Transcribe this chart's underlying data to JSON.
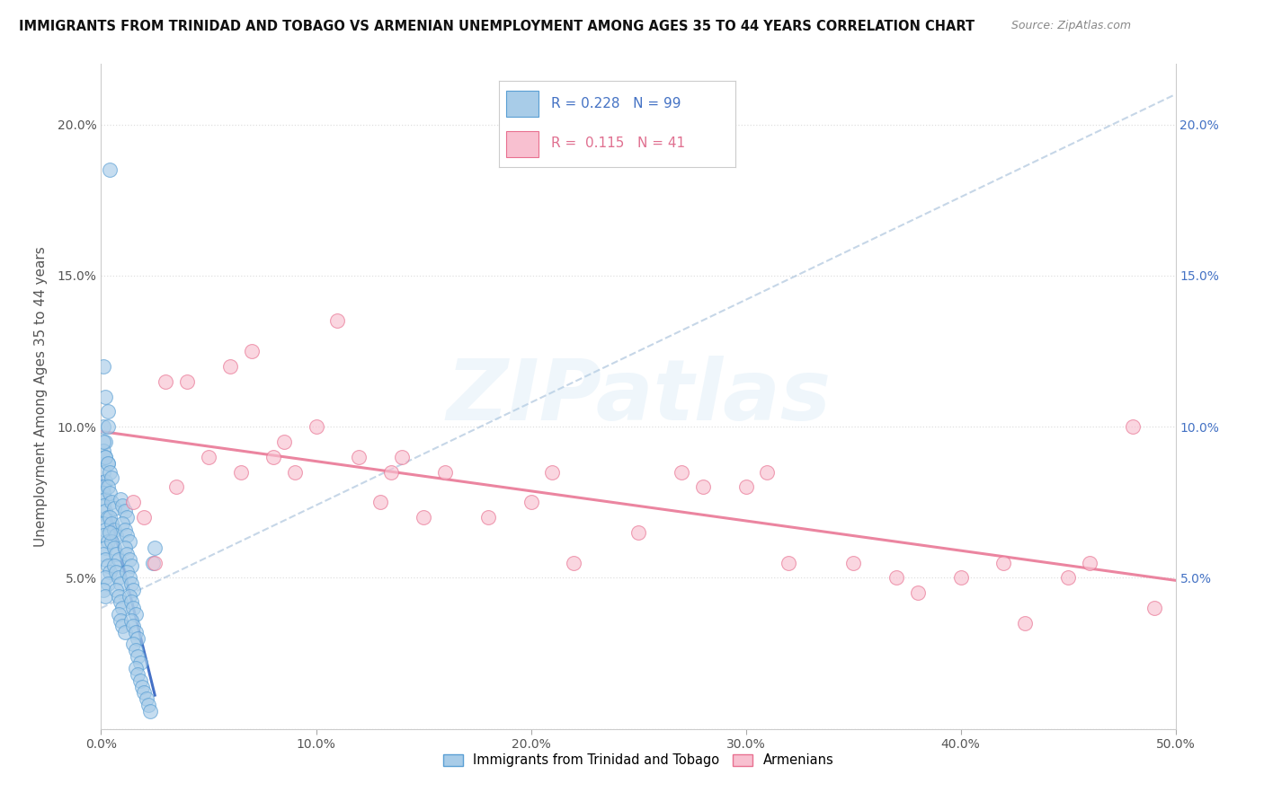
{
  "title": "IMMIGRANTS FROM TRINIDAD AND TOBAGO VS ARMENIAN UNEMPLOYMENT AMONG AGES 35 TO 44 YEARS CORRELATION CHART",
  "source": "Source: ZipAtlas.com",
  "ylabel": "Unemployment Among Ages 35 to 44 years",
  "xlim": [
    0.0,
    0.5
  ],
  "ylim": [
    0.0,
    0.22
  ],
  "xtick_vals": [
    0.0,
    0.1,
    0.2,
    0.3,
    0.4,
    0.5
  ],
  "xticklabels": [
    "0.0%",
    "10.0%",
    "20.0%",
    "30.0%",
    "40.0%",
    "50.0%"
  ],
  "ytick_vals": [
    0.0,
    0.05,
    0.1,
    0.15,
    0.2
  ],
  "yticklabels_left": [
    "",
    "5.0%",
    "10.0%",
    "15.0%",
    "20.0%"
  ],
  "yticklabels_right": [
    "",
    "5.0%",
    "10.0%",
    "15.0%",
    "20.0%"
  ],
  "blue_color": "#a8cce8",
  "blue_edge_color": "#5a9fd4",
  "pink_color": "#f8c0d0",
  "pink_edge_color": "#e87090",
  "blue_line_color": "#3060c0",
  "blue_dash_color": "#a0bcd8",
  "pink_line_color": "#e87090",
  "right_tick_color": "#4472c4",
  "blue_R": 0.228,
  "blue_N": 99,
  "pink_R": 0.115,
  "pink_N": 41,
  "legend_label_blue": "Immigrants from Trinidad and Tobago",
  "legend_label_pink": "Armenians",
  "watermark_text": "ZIPatlas",
  "watermark_color": "#b8d8f0",
  "watermark_alpha": 0.22,
  "grid_color": "#e0e0e0",
  "title_color": "#111111",
  "source_color": "#888888",
  "blue_scatter_x": [
    0.004,
    0.001,
    0.002,
    0.003,
    0.001,
    0.002,
    0.001,
    0.002,
    0.003,
    0.001,
    0.002,
    0.001,
    0.001,
    0.002,
    0.001,
    0.002,
    0.003,
    0.001,
    0.002,
    0.001,
    0.003,
    0.002,
    0.001,
    0.002,
    0.003,
    0.004,
    0.002,
    0.003,
    0.001,
    0.002,
    0.003,
    0.001,
    0.002,
    0.003,
    0.004,
    0.005,
    0.003,
    0.004,
    0.005,
    0.006,
    0.004,
    0.005,
    0.006,
    0.007,
    0.005,
    0.006,
    0.007,
    0.008,
    0.006,
    0.007,
    0.008,
    0.009,
    0.007,
    0.008,
    0.009,
    0.01,
    0.008,
    0.009,
    0.01,
    0.011,
    0.009,
    0.01,
    0.011,
    0.012,
    0.01,
    0.011,
    0.012,
    0.013,
    0.011,
    0.012,
    0.013,
    0.014,
    0.012,
    0.013,
    0.014,
    0.015,
    0.013,
    0.014,
    0.015,
    0.016,
    0.014,
    0.015,
    0.016,
    0.017,
    0.015,
    0.016,
    0.017,
    0.018,
    0.016,
    0.017,
    0.018,
    0.019,
    0.02,
    0.021,
    0.022,
    0.023,
    0.024,
    0.025,
    0.004
  ],
  "blue_scatter_y": [
    0.185,
    0.12,
    0.11,
    0.105,
    0.1,
    0.095,
    0.092,
    0.09,
    0.088,
    0.085,
    0.082,
    0.08,
    0.078,
    0.076,
    0.074,
    0.072,
    0.07,
    0.068,
    0.066,
    0.064,
    0.062,
    0.06,
    0.058,
    0.056,
    0.054,
    0.052,
    0.05,
    0.048,
    0.046,
    0.044,
    0.1,
    0.095,
    0.09,
    0.088,
    0.085,
    0.083,
    0.08,
    0.078,
    0.075,
    0.073,
    0.07,
    0.068,
    0.066,
    0.064,
    0.062,
    0.06,
    0.058,
    0.056,
    0.054,
    0.052,
    0.05,
    0.048,
    0.046,
    0.044,
    0.042,
    0.04,
    0.038,
    0.036,
    0.034,
    0.032,
    0.076,
    0.074,
    0.072,
    0.07,
    0.068,
    0.066,
    0.064,
    0.062,
    0.06,
    0.058,
    0.056,
    0.054,
    0.052,
    0.05,
    0.048,
    0.046,
    0.044,
    0.042,
    0.04,
    0.038,
    0.036,
    0.034,
    0.032,
    0.03,
    0.028,
    0.026,
    0.024,
    0.022,
    0.02,
    0.018,
    0.016,
    0.014,
    0.012,
    0.01,
    0.008,
    0.006,
    0.055,
    0.06,
    0.065
  ],
  "pink_scatter_x": [
    0.015,
    0.02,
    0.03,
    0.035,
    0.04,
    0.05,
    0.06,
    0.065,
    0.07,
    0.08,
    0.085,
    0.09,
    0.1,
    0.11,
    0.12,
    0.13,
    0.135,
    0.14,
    0.15,
    0.16,
    0.18,
    0.2,
    0.21,
    0.22,
    0.25,
    0.27,
    0.28,
    0.3,
    0.31,
    0.32,
    0.35,
    0.37,
    0.38,
    0.4,
    0.42,
    0.43,
    0.45,
    0.46,
    0.48,
    0.49,
    0.025
  ],
  "pink_scatter_y": [
    0.075,
    0.07,
    0.115,
    0.08,
    0.115,
    0.09,
    0.12,
    0.085,
    0.125,
    0.09,
    0.095,
    0.085,
    0.1,
    0.135,
    0.09,
    0.075,
    0.085,
    0.09,
    0.07,
    0.085,
    0.07,
    0.075,
    0.085,
    0.055,
    0.065,
    0.085,
    0.08,
    0.08,
    0.085,
    0.055,
    0.055,
    0.05,
    0.045,
    0.05,
    0.055,
    0.035,
    0.05,
    0.055,
    0.1,
    0.04,
    0.055
  ]
}
